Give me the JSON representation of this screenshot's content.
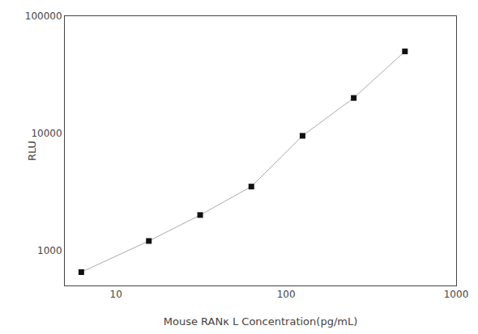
{
  "chart_data": {
    "type": "line",
    "x": [
      6.25,
      15.6,
      31.25,
      62.5,
      125,
      250,
      500
    ],
    "series": [
      {
        "type": "line",
        "color": "#aaaaaa",
        "values": [
          650,
          1200,
          2000,
          3500,
          9500,
          20000,
          50000
        ]
      },
      {
        "type": "scatter",
        "color": "#111111",
        "marker": "square",
        "values": [
          650,
          1200,
          2000,
          3500,
          9500,
          20000,
          50000
        ]
      }
    ],
    "xlabel": "Mouse RANκ L Concentration(pg/mL)",
    "ylabel": "RLU",
    "xlim": [
      5,
      1000
    ],
    "ylim": [
      500,
      100000
    ],
    "xticks": [
      10,
      100,
      1000
    ],
    "yticks": [
      1000,
      10000,
      100000
    ],
    "log": true,
    "grid": false
  }
}
